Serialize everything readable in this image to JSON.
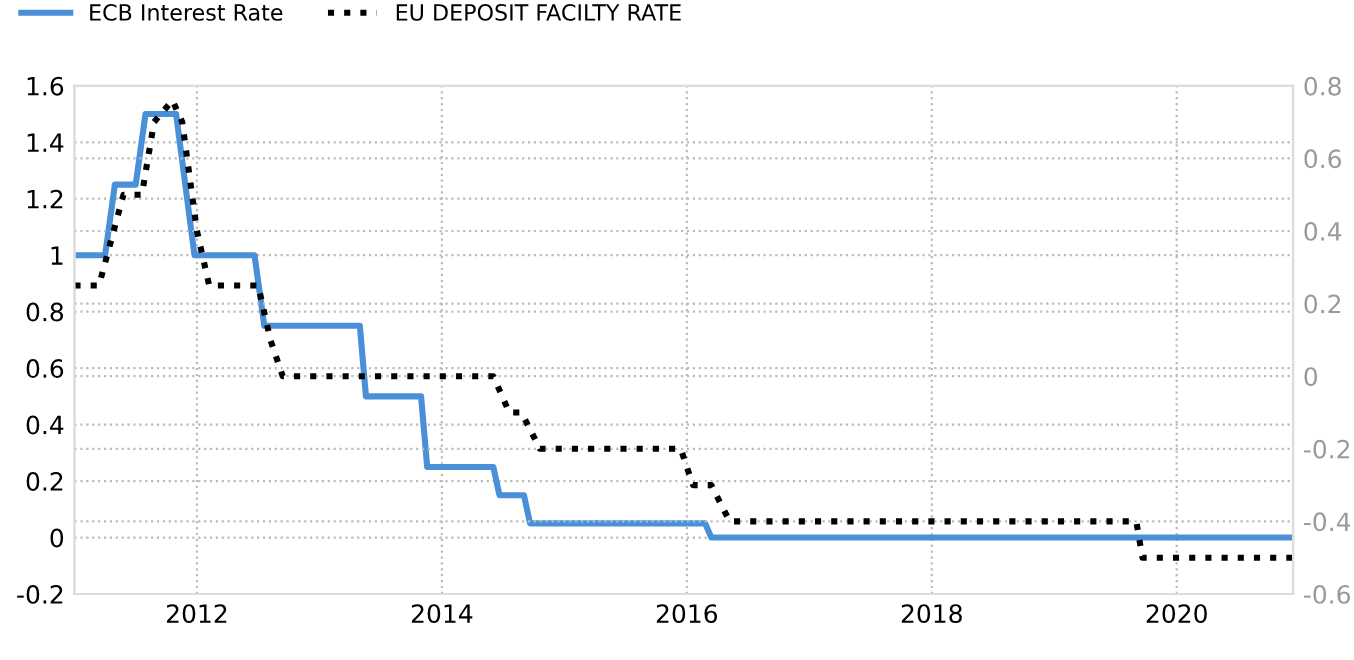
{
  "chart_data": {
    "type": "line",
    "xlim": [
      2011.0,
      2020.95
    ],
    "xticks": [
      2012,
      2014,
      2016,
      2018,
      2020
    ],
    "ylim": [
      -0.2,
      1.6
    ],
    "yticks": [
      -0.2,
      0,
      0.2,
      0.4,
      0.6,
      0.8,
      1,
      1.2,
      1.4,
      1.6
    ],
    "y2lim": [
      -0.6,
      0.8
    ],
    "y2ticks": [
      -0.6,
      -0.4,
      -0.2,
      0,
      0.2,
      0.4,
      0.6,
      0.8
    ],
    "grid": true,
    "legend": "top left",
    "series": [
      {
        "name": "ECB Interest Rate",
        "color": "#4a90d9",
        "line_style": "solid",
        "x": [
          2011.0,
          2011.25,
          2011.33,
          2011.5,
          2011.58,
          2011.83,
          2011.98,
          2012.47,
          2012.55,
          2013.33,
          2013.38,
          2013.83,
          2013.88,
          2014.42,
          2014.47,
          2014.67,
          2014.72,
          2016.15,
          2016.2,
          2020.95
        ],
        "values": [
          1.0,
          1.0,
          1.25,
          1.25,
          1.5,
          1.5,
          1.0,
          1.0,
          0.75,
          0.75,
          0.5,
          0.5,
          0.25,
          0.25,
          0.15,
          0.15,
          0.05,
          0.05,
          0.0,
          0.0
        ]
      },
      {
        "name": "EU DEPOSIT FACILTY RATE",
        "color": "#000000",
        "line_style": "dotted",
        "axis": "y2",
        "x": [
          2011.0,
          2011.2,
          2011.4,
          2011.55,
          2011.65,
          2011.8,
          2011.88,
          2012.0,
          2012.1,
          2012.5,
          2012.6,
          2012.7,
          2014.42,
          2014.55,
          2014.65,
          2014.8,
          2015.95,
          2016.05,
          2016.2,
          2016.35,
          2019.67,
          2019.72,
          2020.95
        ],
        "values": [
          0.25,
          0.25,
          0.5,
          0.5,
          0.7,
          0.76,
          0.7,
          0.4,
          0.25,
          0.25,
          0.1,
          0.0,
          0.0,
          -0.1,
          -0.1,
          -0.2,
          -0.2,
          -0.3,
          -0.3,
          -0.4,
          -0.4,
          -0.5,
          -0.5
        ]
      }
    ]
  }
}
